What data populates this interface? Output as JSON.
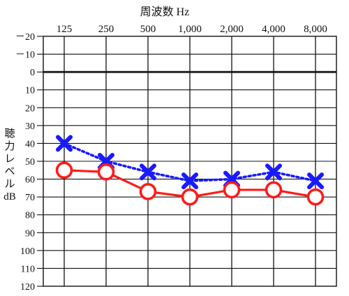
{
  "chart_data": {
    "type": "line",
    "title": "周波数 Hz",
    "ylabel": [
      "聴",
      "力",
      "レ",
      "ベ",
      "ル",
      "dB"
    ],
    "categories": [
      "125",
      "250",
      "500",
      "1,000",
      "2,000",
      "4,000",
      "8,000"
    ],
    "y_ticks": [
      "－20",
      "－10",
      "0",
      "10",
      "20",
      "30",
      "40",
      "50",
      "60",
      "70",
      "80",
      "90",
      "100",
      "110",
      "120"
    ],
    "ylim": [
      -20,
      120
    ],
    "y_inverted": true,
    "grid": true,
    "reference_line_y": 0,
    "series": [
      {
        "marker": "cross",
        "line_style": "dotted",
        "color": "#1a1aff",
        "values": [
          40,
          50,
          56,
          61,
          60,
          56,
          61
        ]
      },
      {
        "marker": "circle",
        "line_style": "solid",
        "color": "#ff1a1a",
        "values": [
          55,
          56,
          67,
          70,
          66,
          66,
          70
        ]
      }
    ]
  }
}
